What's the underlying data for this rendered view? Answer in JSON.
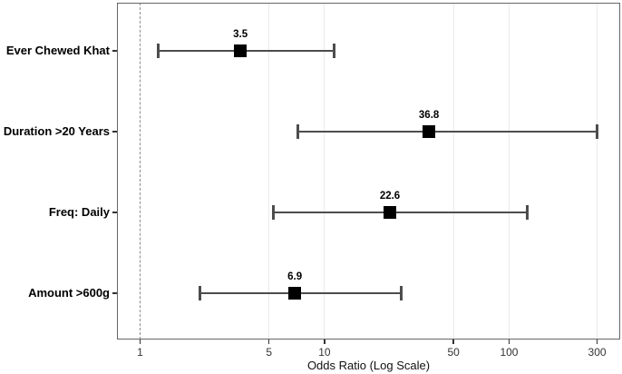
{
  "chart_data": {
    "type": "scatter",
    "subtype": "forest-plot",
    "title": "",
    "xlabel": "Odds Ratio (Log Scale)",
    "ylabel": "",
    "x_scale": "log10",
    "xlim": [
      0.75,
      400
    ],
    "x_ticks": [
      1,
      5,
      10,
      50,
      100,
      300
    ],
    "x_tick_labels": [
      "1",
      "5",
      "10",
      "50",
      "100",
      "300"
    ],
    "reference_line": 1,
    "grid": true,
    "legend": "none",
    "categories": [
      "Ever Chewed Khat",
      "Duration >20 Years",
      "Freq: Daily",
      "Amount >600g"
    ],
    "rows": [
      {
        "label": "Ever Chewed Khat",
        "or": 3.5,
        "ci_lower": 1.25,
        "ci_upper": 11.3,
        "value_label": "3.5"
      },
      {
        "label": "Duration >20 Years",
        "or": 36.8,
        "ci_lower": 7.2,
        "ci_upper": 300,
        "value_label": "36.8"
      },
      {
        "label": "Freq: Daily",
        "or": 22.6,
        "ci_lower": 5.3,
        "ci_upper": 125,
        "value_label": "22.6"
      },
      {
        "label": "Amount >600g",
        "or": 6.9,
        "ci_lower": 2.1,
        "ci_upper": 26,
        "value_label": "6.9"
      }
    ],
    "colors": {
      "point": "#000000",
      "errorbar": "#4d4d4d",
      "gridline": "#ebebeb",
      "reference_line": "#8c8c8c",
      "panel_border": "#666666",
      "tick": "#333333",
      "label_text": "#000000",
      "background": "#ffffff"
    }
  }
}
